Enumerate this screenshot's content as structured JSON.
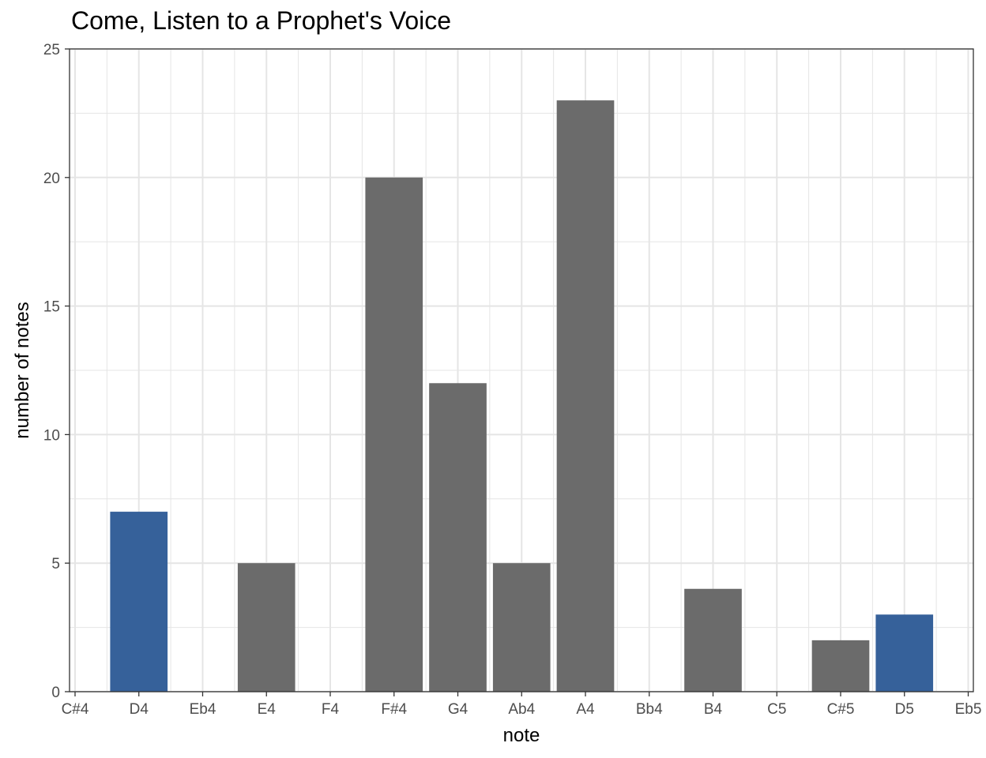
{
  "chart_data": {
    "type": "bar",
    "title": "Come, Listen to a Prophet's Voice",
    "xlabel": "note",
    "ylabel": "number of notes",
    "categories": [
      "C#4",
      "D4",
      "Eb4",
      "E4",
      "F4",
      "F#4",
      "G4",
      "Ab4",
      "A4",
      "Bb4",
      "B4",
      "C5",
      "C#5",
      "D5",
      "Eb5"
    ],
    "values": [
      0,
      7,
      0,
      5,
      0,
      20,
      12,
      5,
      23,
      0,
      4,
      0,
      2,
      3,
      0
    ],
    "highlighted": [
      "D4",
      "D5"
    ],
    "ylim": [
      0,
      25
    ],
    "yticks": [
      0,
      5,
      10,
      15,
      20,
      25
    ],
    "grid": true,
    "colors": {
      "bar": "#6b6b6b",
      "highlight": "#36619a",
      "grid": "#e5e5e5",
      "panel_border": "#333333"
    }
  }
}
